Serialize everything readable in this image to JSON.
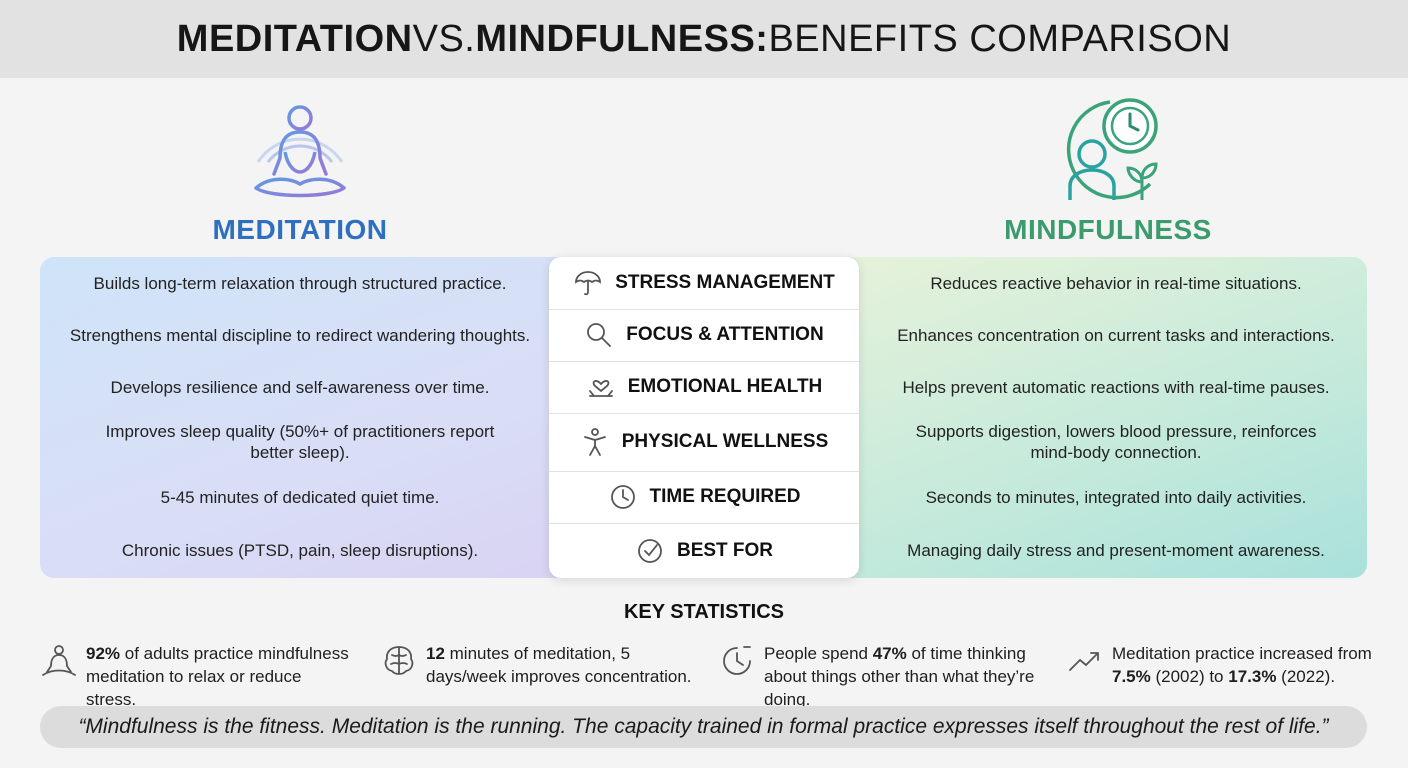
{
  "header": {
    "title_parts": [
      {
        "text": "MEDITATION",
        "strong": true
      },
      {
        "text": " VS. ",
        "strong": false
      },
      {
        "text": "MINDFULNESS:",
        "strong": true
      },
      {
        "text": " BENEFITS COMPARISON",
        "strong": false
      }
    ]
  },
  "left": {
    "heading": "MEDITATION"
  },
  "right": {
    "heading": "MINDFULNESS"
  },
  "rows": [
    {
      "label": "STRESS MANAGEMENT",
      "meditation": "Builds long-term relaxation through structured practice.",
      "mindfulness": "Reduces reactive behavior in real-time situations."
    },
    {
      "label": "FOCUS & ATTENTION",
      "meditation": "Strengthens mental discipline to redirect wandering thoughts.",
      "mindfulness": "Enhances concentration on current tasks and interactions."
    },
    {
      "label": "EMOTIONAL HEALTH",
      "meditation": "Develops resilience and self-awareness over time.",
      "mindfulness": "Helps prevent automatic reactions with real-time pauses."
    },
    {
      "label": "PHYSICAL WELLNESS",
      "meditation": "Improves sleep quality (50%+ of practitioners report better sleep).",
      "mindfulness": "Supports digestion, lowers blood pressure, reinforces mind-body connection."
    },
    {
      "label": "TIME REQUIRED",
      "meditation": "5-45 minutes of dedicated quiet time.",
      "mindfulness": "Seconds to minutes, integrated into daily activities."
    },
    {
      "label": "BEST FOR",
      "meditation": "Chronic issues (PTSD, pain, sleep disruptions).",
      "mindfulness": "Managing daily stress and present-moment awareness."
    }
  ],
  "statistics": {
    "title": "KEY STATISTICS",
    "items": [
      {
        "parts": [
          {
            "text": "92%",
            "strong": true
          },
          {
            "text": " of adults practice mindfulness meditation to relax or reduce stress.",
            "strong": false
          }
        ]
      },
      {
        "parts": [
          {
            "text": "12",
            "strong": true
          },
          {
            "text": " minutes of meditation, 5 days/week improves concentration.",
            "strong": false
          }
        ]
      },
      {
        "parts": [
          {
            "text": "People spend ",
            "strong": false
          },
          {
            "text": "47%",
            "strong": true
          },
          {
            "text": " of time thinking about things other than what they’re doing.",
            "strong": false
          }
        ]
      },
      {
        "parts": [
          {
            "text": "Meditation practice increased from ",
            "strong": false
          },
          {
            "text": "7.5%",
            "strong": true
          },
          {
            "text": " (2002) to ",
            "strong": false
          },
          {
            "text": "17.3%",
            "strong": true
          },
          {
            "text": " (2022).",
            "strong": false
          }
        ]
      }
    ]
  },
  "quote": "“Mindfulness is the fitness. Meditation is the running. The capacity trained in formal practice expresses itself throughout the rest of life.”"
}
